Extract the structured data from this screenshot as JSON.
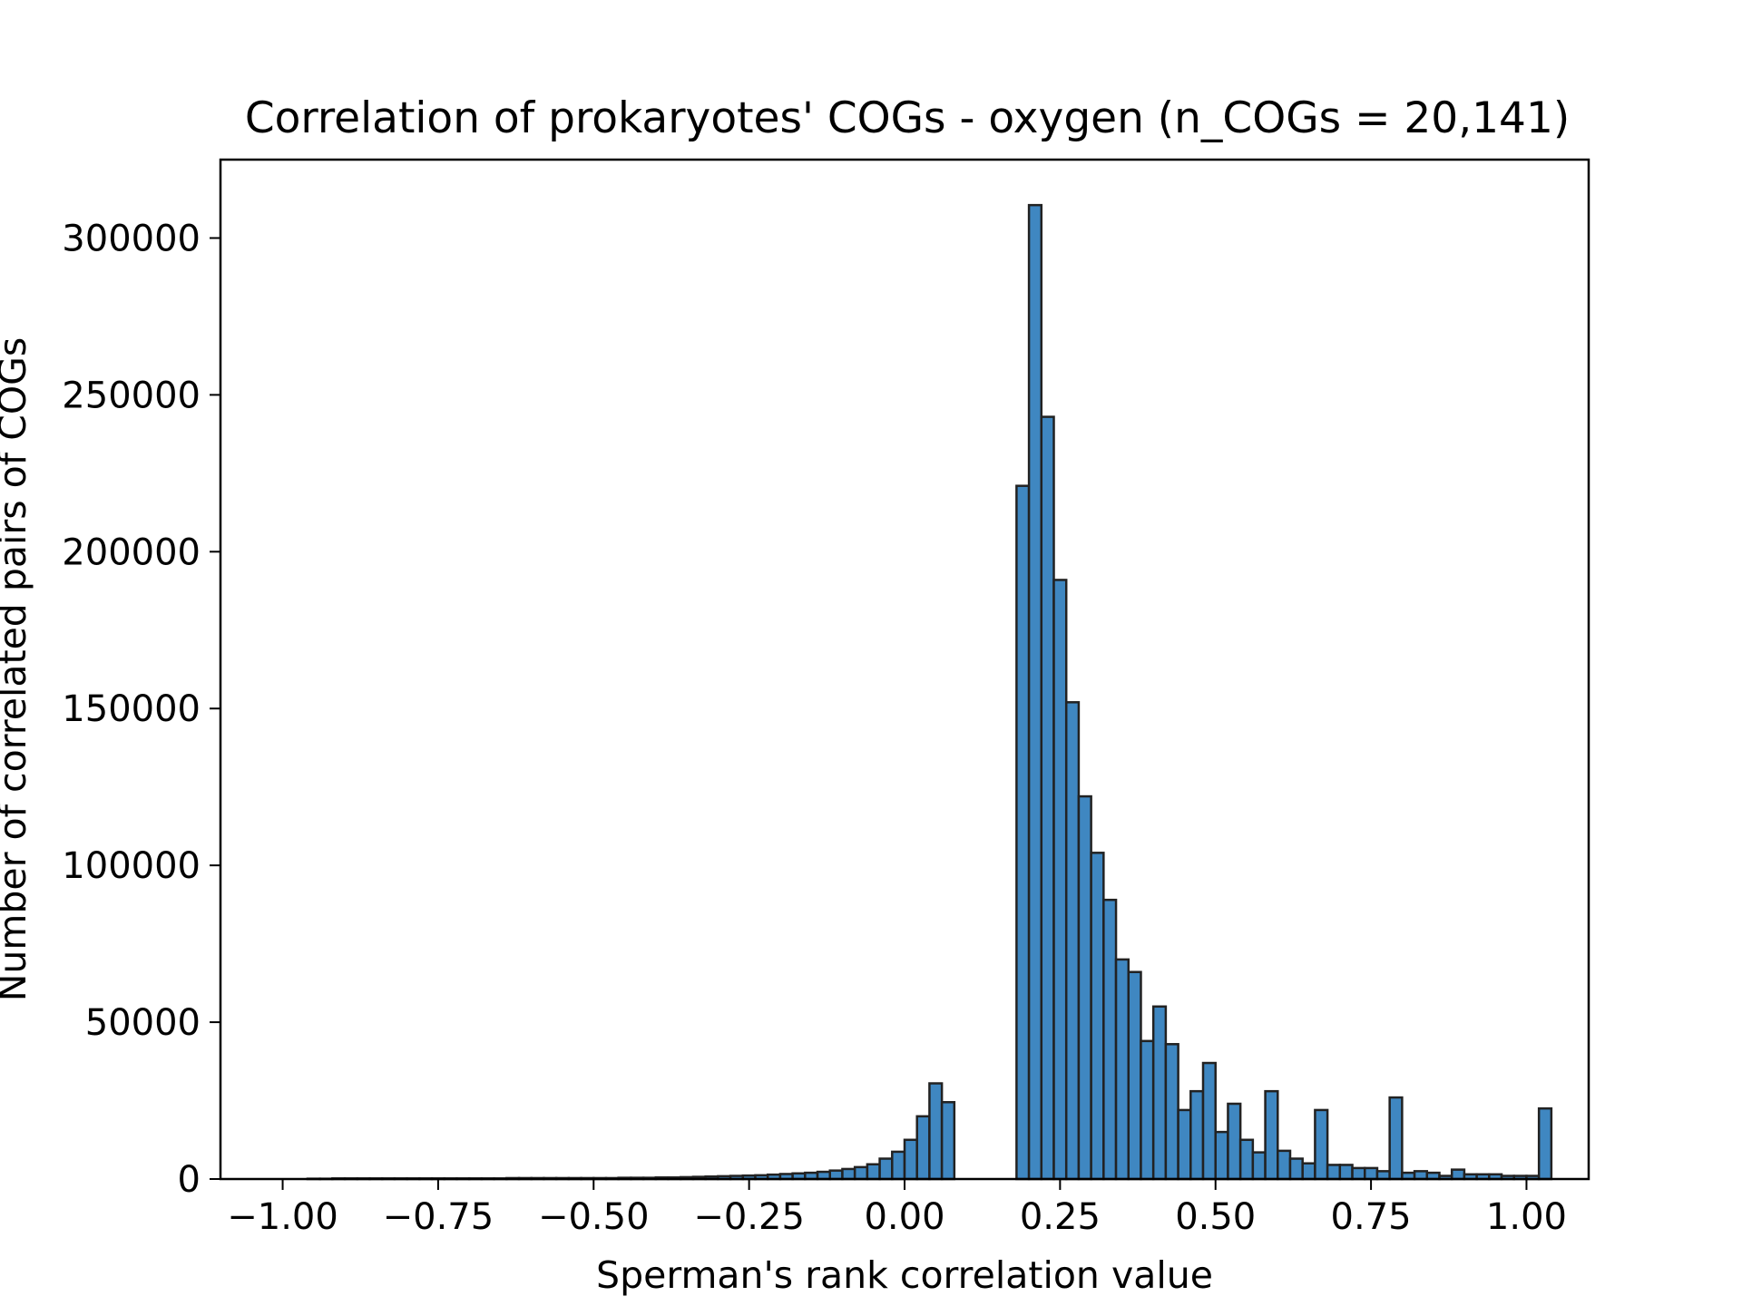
{
  "chart_data": {
    "type": "bar",
    "title": "Correlation of prokaryotes' COGs - oxygen (n_COGs = 20,141)",
    "xlabel": "Sperman's rank correlation value",
    "ylabel": "Number of correlated pairs of COGs",
    "xlim": [
      -1.1,
      1.1
    ],
    "ylim": [
      0,
      325000
    ],
    "xticks": [
      -1.0,
      -0.75,
      -0.5,
      -0.25,
      0.0,
      0.25,
      0.5,
      0.75,
      1.0
    ],
    "xtick_labels": [
      "−1.00",
      "−0.75",
      "−0.50",
      "−0.25",
      "0.00",
      "0.25",
      "0.50",
      "0.75",
      "1.00"
    ],
    "yticks": [
      0,
      50000,
      100000,
      150000,
      200000,
      250000,
      300000
    ],
    "ytick_labels": [
      "0",
      "50000",
      "100000",
      "150000",
      "200000",
      "250000",
      "300000"
    ],
    "bin_width": 0.02,
    "bin_start": -1.0,
    "values": [
      0,
      0,
      100,
      100,
      200,
      200,
      200,
      200,
      200,
      200,
      200,
      200,
      200,
      200,
      200,
      200,
      200,
      200,
      300,
      300,
      300,
      300,
      300,
      300,
      300,
      300,
      300,
      400,
      400,
      400,
      500,
      500,
      600,
      700,
      800,
      900,
      1000,
      1100,
      1200,
      1400,
      1600,
      1800,
      2000,
      2300,
      2700,
      3200,
      3800,
      4700,
      6500,
      8700,
      12500,
      20000,
      30500,
      24500,
      0,
      0,
      0,
      0,
      0,
      221000,
      310500,
      243000,
      191000,
      152000,
      122000,
      104000,
      89000,
      70000,
      66000,
      44000,
      55000,
      43000,
      22000,
      28000,
      37000,
      15000,
      24000,
      12500,
      8500,
      28000,
      9000,
      6500,
      5000,
      22000,
      4500,
      4500,
      3500,
      3500,
      2500,
      26000,
      2000,
      2500,
      2000,
      1000,
      3000,
      1500,
      1500,
      1500,
      1000,
      1000,
      1000,
      22500
    ],
    "bar_color": "#3f87c1",
    "edge_color": "#222222",
    "grid": false,
    "legend": "none"
  }
}
